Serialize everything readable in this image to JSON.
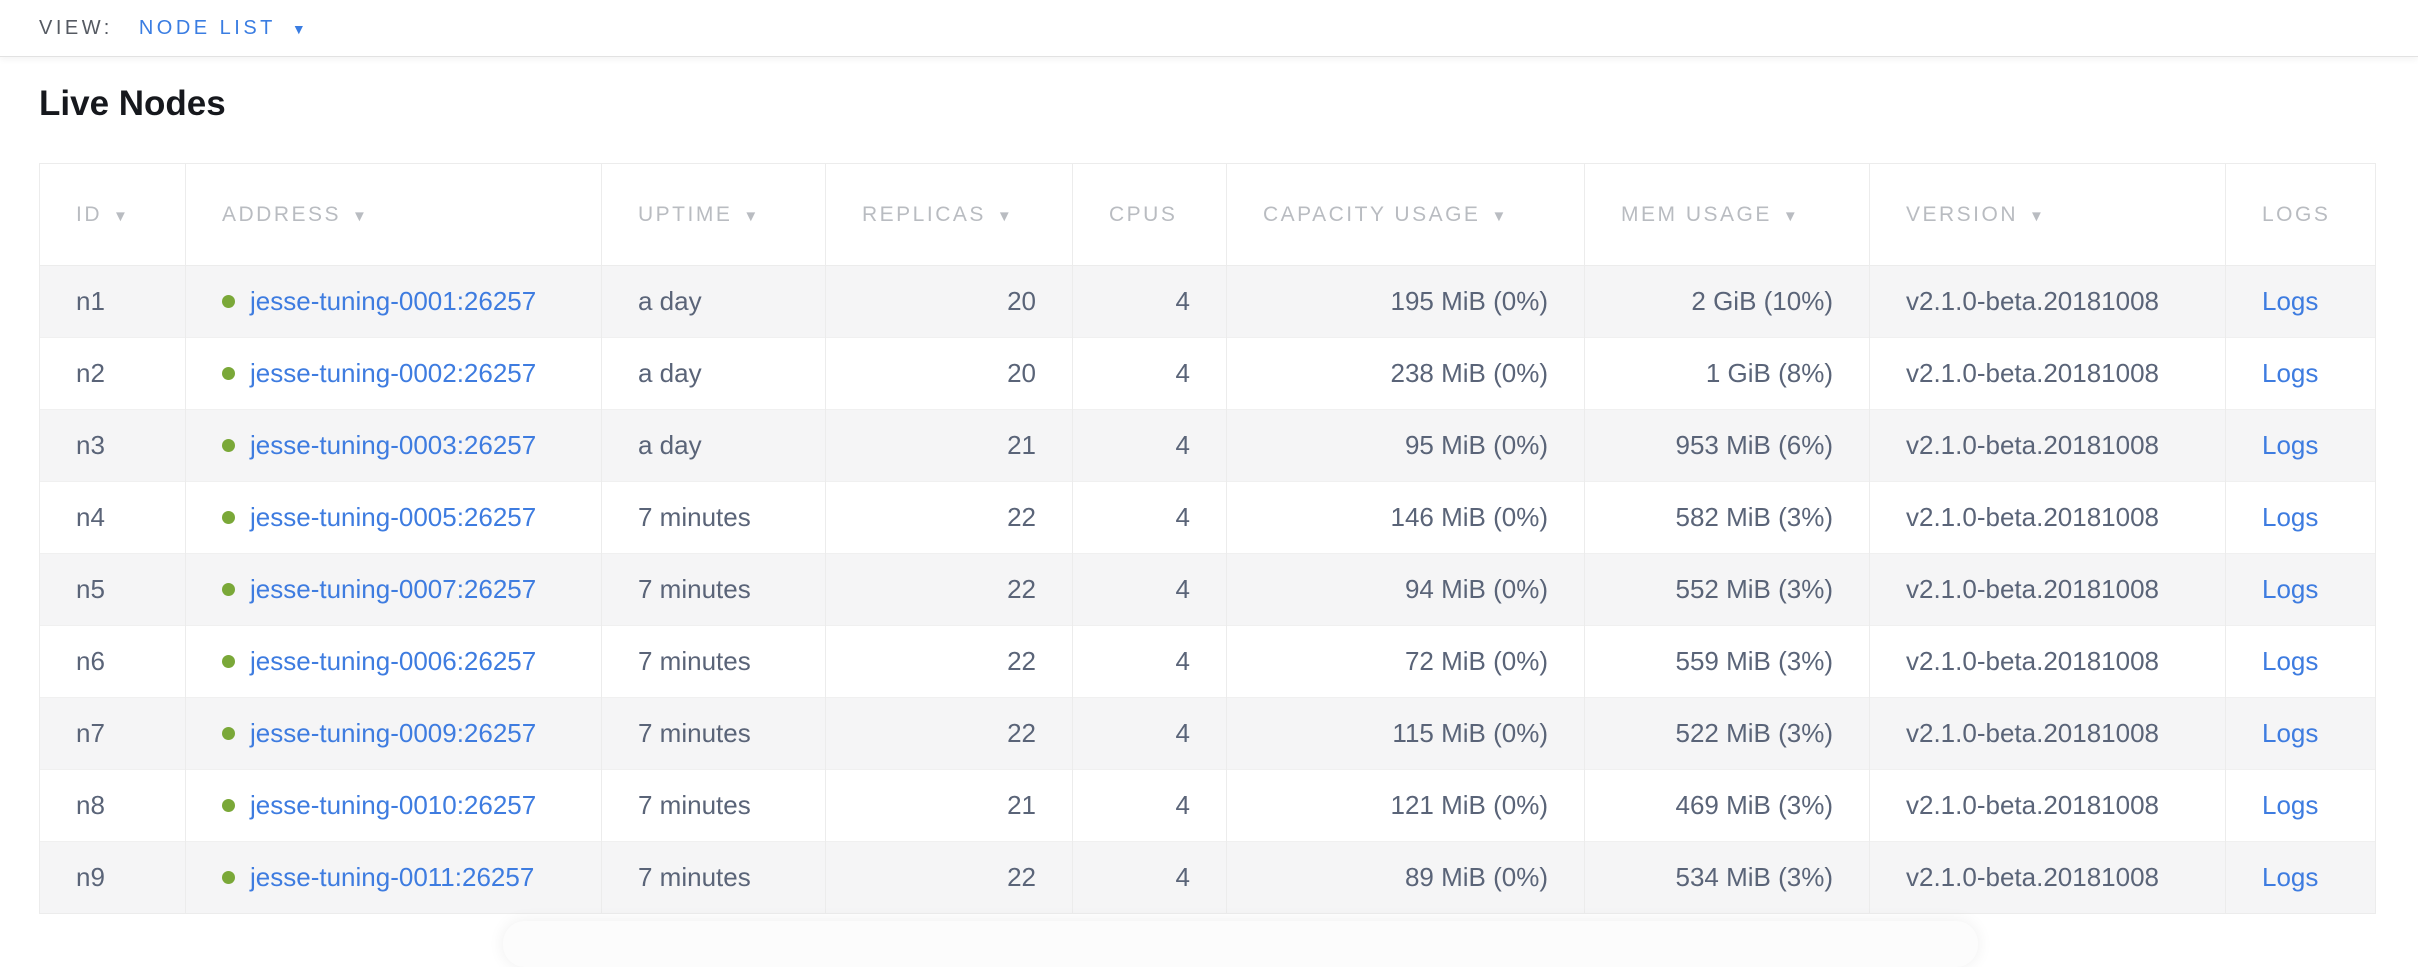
{
  "view_bar": {
    "label": "VIEW:",
    "selected": "NODE LIST",
    "dropdown_icon": "caret-down"
  },
  "page": {
    "title": "Live Nodes"
  },
  "table": {
    "columns": [
      {
        "key": "id",
        "label": "ID",
        "sortable": true
      },
      {
        "key": "address",
        "label": "ADDRESS",
        "sortable": true
      },
      {
        "key": "uptime",
        "label": "UPTIME",
        "sortable": true
      },
      {
        "key": "replicas",
        "label": "REPLICAS",
        "sortable": true
      },
      {
        "key": "cpus",
        "label": "CPUS",
        "sortable": false
      },
      {
        "key": "capacity_usage",
        "label": "CAPACITY USAGE",
        "sortable": true
      },
      {
        "key": "mem_usage",
        "label": "MEM USAGE",
        "sortable": true
      },
      {
        "key": "version",
        "label": "VERSION",
        "sortable": true
      },
      {
        "key": "logs",
        "label": "LOGS",
        "sortable": false
      }
    ],
    "sort_icon": "▼",
    "rows": [
      {
        "id": "n1",
        "status": "live",
        "address": "jesse-tuning-0001:26257",
        "uptime": "a day",
        "replicas": "20",
        "cpus": "4",
        "capacity_usage": "195 MiB (0%)",
        "mem_usage": "2 GiB (10%)",
        "version": "v2.1.0-beta.20181008",
        "logs": "Logs"
      },
      {
        "id": "n2",
        "status": "live",
        "address": "jesse-tuning-0002:26257",
        "uptime": "a day",
        "replicas": "20",
        "cpus": "4",
        "capacity_usage": "238 MiB (0%)",
        "mem_usage": "1 GiB (8%)",
        "version": "v2.1.0-beta.20181008",
        "logs": "Logs"
      },
      {
        "id": "n3",
        "status": "live",
        "address": "jesse-tuning-0003:26257",
        "uptime": "a day",
        "replicas": "21",
        "cpus": "4",
        "capacity_usage": "95 MiB (0%)",
        "mem_usage": "953 MiB (6%)",
        "version": "v2.1.0-beta.20181008",
        "logs": "Logs"
      },
      {
        "id": "n4",
        "status": "live",
        "address": "jesse-tuning-0005:26257",
        "uptime": "7 minutes",
        "replicas": "22",
        "cpus": "4",
        "capacity_usage": "146 MiB (0%)",
        "mem_usage": "582 MiB (3%)",
        "version": "v2.1.0-beta.20181008",
        "logs": "Logs"
      },
      {
        "id": "n5",
        "status": "live",
        "address": "jesse-tuning-0007:26257",
        "uptime": "7 minutes",
        "replicas": "22",
        "cpus": "4",
        "capacity_usage": "94 MiB (0%)",
        "mem_usage": "552 MiB (3%)",
        "version": "v2.1.0-beta.20181008",
        "logs": "Logs"
      },
      {
        "id": "n6",
        "status": "live",
        "address": "jesse-tuning-0006:26257",
        "uptime": "7 minutes",
        "replicas": "22",
        "cpus": "4",
        "capacity_usage": "72 MiB (0%)",
        "mem_usage": "559 MiB (3%)",
        "version": "v2.1.0-beta.20181008",
        "logs": "Logs"
      },
      {
        "id": "n7",
        "status": "live",
        "address": "jesse-tuning-0009:26257",
        "uptime": "7 minutes",
        "replicas": "22",
        "cpus": "4",
        "capacity_usage": "115 MiB (0%)",
        "mem_usage": "522 MiB (3%)",
        "version": "v2.1.0-beta.20181008",
        "logs": "Logs"
      },
      {
        "id": "n8",
        "status": "live",
        "address": "jesse-tuning-0010:26257",
        "uptime": "7 minutes",
        "replicas": "21",
        "cpus": "4",
        "capacity_usage": "121 MiB (0%)",
        "mem_usage": "469 MiB (3%)",
        "version": "v2.1.0-beta.20181008",
        "logs": "Logs"
      },
      {
        "id": "n9",
        "status": "live",
        "address": "jesse-tuning-0011:26257",
        "uptime": "7 minutes",
        "replicas": "22",
        "cpus": "4",
        "capacity_usage": "89 MiB (0%)",
        "mem_usage": "534 MiB (3%)",
        "version": "v2.1.0-beta.20181008",
        "logs": "Logs"
      }
    ]
  },
  "colors": {
    "accent_blue": "#3a7de2",
    "link_blue": "#3e7ce0",
    "live_dot_green": "#7aa838",
    "header_gray": "#b9bcc1",
    "cell_text": "#5a6478"
  }
}
